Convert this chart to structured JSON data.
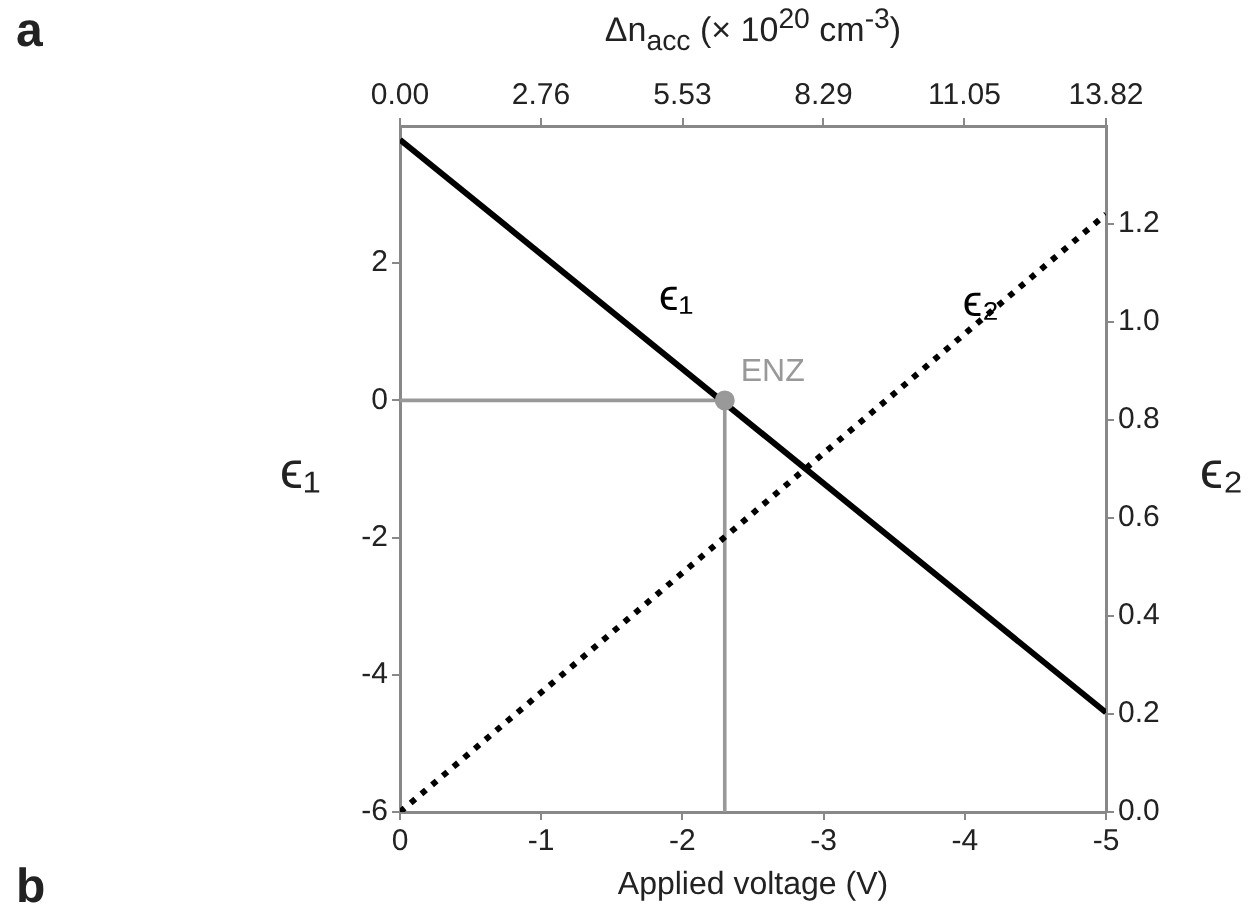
{
  "chart_data": {
    "type": "line",
    "xlabel": "Applied voltage (V)",
    "ylabel": "ϵ₁",
    "y2label": "ϵ₂",
    "x2label": "Δn$_{acc}$ (× 10$^{20}$ cm$^{-3}$)",
    "xlim": [
      0,
      -5
    ],
    "xticks": [
      0,
      -1,
      -2,
      -3,
      -4,
      -5
    ],
    "x2lim": [
      0,
      13.82
    ],
    "x2ticks": [
      {
        "value": 0,
        "label": "0.00"
      },
      2.76,
      5.53,
      8.29,
      11.05,
      13.82
    ],
    "ylim": [
      -6,
      4
    ],
    "yticks": [
      -6,
      -4,
      -2,
      0,
      2
    ],
    "y2lim": [
      0,
      1.4
    ],
    "y2ticks": [
      {
        "value": 0,
        "label": "0.0"
      },
      0.2,
      0.4,
      0.6,
      0.8,
      {
        "value": 1,
        "label": "1.0"
      },
      1.2
    ],
    "grid": false,
    "legend": false,
    "marker": "none",
    "series": [
      {
        "name": "ϵ₁",
        "color": "#000000",
        "x": [
          0,
          -5
        ],
        "values": [
          3.8,
          -4.55
        ],
        "line_style": "solid"
      },
      {
        "name": "ϵ₂",
        "color": "#000000",
        "x": [
          0,
          -5
        ],
        "values": [
          0,
          1.22
        ],
        "axis": "y2",
        "line_style": "dotted"
      },
      {
        "color": "#999999",
        "x": [
          0,
          -2.3,
          -2.3
        ],
        "values": [
          0,
          0,
          -6
        ],
        "line_style": "solid"
      },
      {
        "type": "scatter",
        "color": "#999999",
        "x": [
          -2.3
        ],
        "values": [
          0
        ],
        "marker": "circle"
      }
    ],
    "annotations": [
      "a",
      {
        "text": "ENZ",
        "x": -2.3,
        "y": 0
      },
      "b"
    ]
  }
}
